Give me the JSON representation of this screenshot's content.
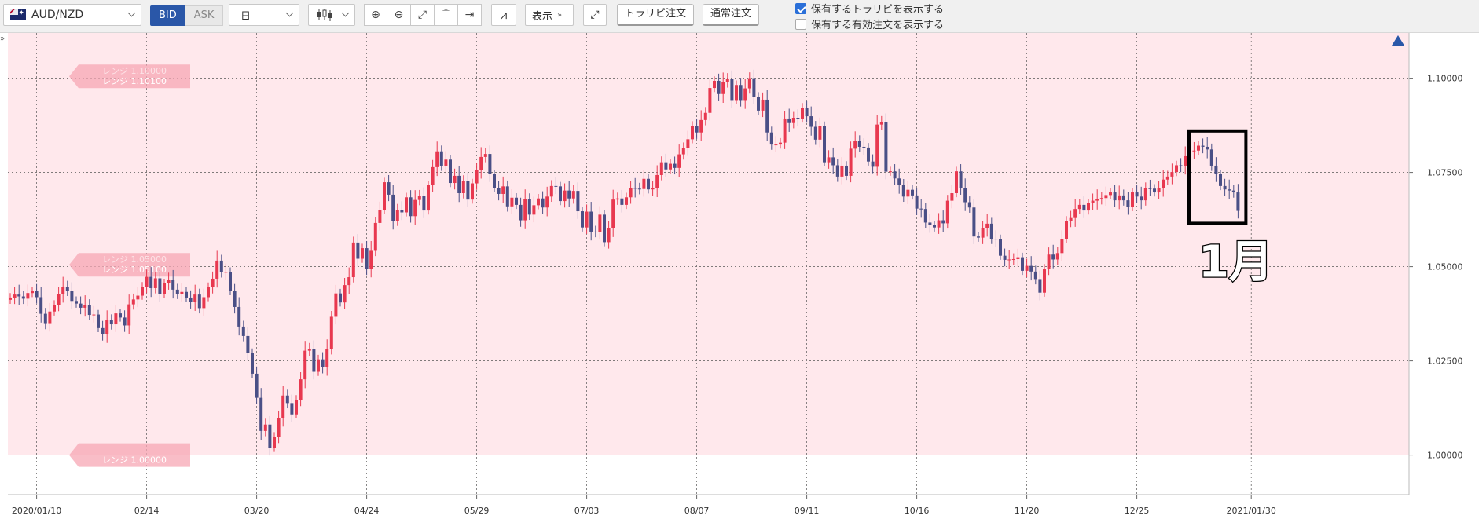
{
  "toolbar": {
    "symbol": "AUD/NZD",
    "bid": "BID",
    "ask": "ASK",
    "period": "日",
    "icons": [
      "candlestick-icon",
      "zoom-in-icon",
      "zoom-out-icon",
      "fit-icon",
      "lock-icon",
      "jump-end-icon",
      "indicator-icon",
      "expand-icon"
    ],
    "display_label": "表示",
    "trap_order": "トラリピ注文",
    "normal_order": "通常注文",
    "check1": "保有するトラリピを表示する",
    "check2": "保有する有効注文を表示する"
  },
  "colors": {
    "up": "#e8384f",
    "down": "#4a4f86",
    "range_band": "#ffe8ec",
    "range_label": "#f7a7b4"
  },
  "range_labels": [
    {
      "top": "レンジ 1.10000",
      "bottom": "レンジ 1.10100",
      "price": 1.1005
    },
    {
      "top": "レンジ 1.05000",
      "bottom": "レンジ 1.05100",
      "price": 1.0505
    },
    {
      "top": "",
      "bottom": "レンジ 1.00000",
      "price": 1.0
    }
  ],
  "annotation": {
    "label": "1月"
  },
  "chart_data": {
    "type": "candlestick",
    "ylim": [
      0.9895,
      1.112
    ],
    "y_ticks": [
      1.0,
      1.025,
      1.05,
      1.075,
      1.1
    ],
    "y_tick_labels": [
      "1.00000",
      "1.02500",
      "1.05000",
      "1.07500",
      "1.10000"
    ],
    "x_tick_labels": [
      "2020/01/10",
      "02/14",
      "03/20",
      "04/24",
      "05/29",
      "07/03",
      "08/07",
      "09/11",
      "10/16",
      "11/20",
      "12/25",
      "2021/01/30"
    ],
    "x_tick_index": [
      6,
      31,
      56,
      81,
      106,
      131,
      156,
      181,
      206,
      231,
      256,
      282
    ],
    "range_band": [
      1.0,
      1.112
    ],
    "close": [
      1.0418,
      1.0426,
      1.0421,
      1.0415,
      1.043,
      1.0435,
      1.0419,
      1.0375,
      1.0348,
      1.0381,
      1.0399,
      1.0428,
      1.0447,
      1.0436,
      1.0409,
      1.0402,
      1.0391,
      1.0398,
      1.0372,
      1.0373,
      1.0337,
      1.0321,
      1.0358,
      1.0347,
      1.0376,
      1.0365,
      1.0344,
      1.04,
      1.0413,
      1.0423,
      1.0447,
      1.0473,
      1.0443,
      1.0469,
      1.0427,
      1.0456,
      1.0465,
      1.0439,
      1.0428,
      1.0433,
      1.0418,
      1.0406,
      1.0426,
      1.039,
      1.0419,
      1.0446,
      1.0468,
      1.0516,
      1.0485,
      1.0486,
      1.0435,
      1.0393,
      1.0341,
      1.0316,
      1.0271,
      1.0216,
      1.0152,
      1.0064,
      1.0081,
      1.0019,
      1.0049,
      1.0099,
      1.0158,
      1.0138,
      1.0108,
      1.0147,
      1.0201,
      1.0277,
      1.0282,
      1.0221,
      1.0254,
      1.0234,
      1.0281,
      1.0367,
      1.0429,
      1.0405,
      1.0451,
      1.0472,
      1.0564,
      1.0521,
      1.0549,
      1.0495,
      1.0542,
      1.0616,
      1.065,
      1.0724,
      1.0691,
      1.0622,
      1.0651,
      1.0644,
      1.0684,
      1.0634,
      1.0677,
      1.0688,
      1.0649,
      1.0716,
      1.0764,
      1.0806,
      1.0768,
      1.0784,
      1.0722,
      1.0741,
      1.0695,
      1.0727,
      1.0678,
      1.0721,
      1.0757,
      1.0791,
      1.0799,
      1.0745,
      1.0708,
      1.0693,
      1.0713,
      1.066,
      1.0683,
      1.0664,
      1.0623,
      1.0679,
      1.0638,
      1.0663,
      1.0681,
      1.0657,
      1.0686,
      1.0714,
      1.0713,
      1.0674,
      1.0702,
      1.0681,
      1.0701,
      1.0647,
      1.0604,
      1.0646,
      1.0593,
      1.0592,
      1.0638,
      1.0565,
      1.0602,
      1.0678,
      1.0681,
      1.0664,
      1.0684,
      1.0709,
      1.0707,
      1.0706,
      1.0733,
      1.0705,
      1.0708,
      1.0743,
      1.0777,
      1.0758,
      1.0773,
      1.0762,
      1.0798,
      1.0814,
      1.0838,
      1.0874,
      1.0856,
      1.0889,
      1.0908,
      1.0974,
      1.0993,
      1.0958,
      1.0989,
      1.0998,
      1.0942,
      1.0982,
      1.0942,
      1.0973,
      1.1,
      1.0951,
      1.0914,
      1.0943,
      1.0856,
      1.0824,
      1.0824,
      1.0829,
      1.0893,
      1.0881,
      1.0895,
      1.0893,
      1.0922,
      1.0899,
      1.0871,
      1.0837,
      1.0873,
      1.0777,
      1.079,
      1.0769,
      1.0739,
      1.0768,
      1.0741,
      1.0813,
      1.0833,
      1.0818,
      1.0816,
      1.0779,
      1.0765,
      1.0877,
      1.0884,
      1.0752,
      1.0753,
      1.0734,
      1.0717,
      1.0686,
      1.0704,
      1.0689,
      1.0654,
      1.0653,
      1.0617,
      1.061,
      1.0604,
      1.0623,
      1.0615,
      1.0675,
      1.0695,
      1.0753,
      1.0708,
      1.0671,
      1.0657,
      1.058,
      1.0577,
      1.0603,
      1.0614,
      1.0574,
      1.0573,
      1.0529,
      1.0518,
      1.0519,
      1.052,
      1.0525,
      1.0489,
      1.0502,
      1.0487,
      1.0467,
      1.0431,
      1.0495,
      1.0532,
      1.0519,
      1.0536,
      1.0574,
      1.0622,
      1.0629,
      1.0653,
      1.0664,
      1.0649,
      1.0668,
      1.0675,
      1.0679,
      1.0682,
      1.069,
      1.0697,
      1.0676,
      1.0689,
      1.0676,
      1.0658,
      1.0697,
      1.0686,
      1.0676,
      1.0708,
      1.0707,
      1.0697,
      1.0709,
      1.0731,
      1.0739,
      1.0751,
      1.0769,
      1.0768,
      1.0793,
      1.0807,
      1.0808,
      1.0821,
      1.0818,
      1.0811,
      1.0768,
      1.0745,
      1.0714,
      1.0705,
      1.0702,
      1.0697,
      1.0648
    ]
  }
}
